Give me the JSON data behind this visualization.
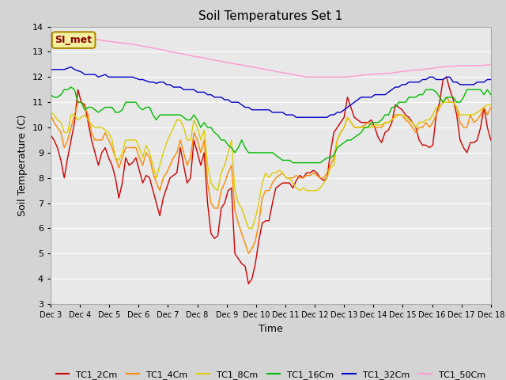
{
  "title": "Soil Temperatures Set 1",
  "xlabel": "Time",
  "ylabel": "Soil Temperature (C)",
  "ylim": [
    3.0,
    14.0
  ],
  "yticks": [
    3.0,
    4.0,
    5.0,
    6.0,
    7.0,
    8.0,
    9.0,
    10.0,
    11.0,
    12.0,
    13.0,
    14.0
  ],
  "xtick_labels": [
    "Dec 3",
    "Dec 4",
    "Dec 5",
    "Dec 6",
    "Dec 7",
    "Dec 8",
    "Dec 9",
    "Dec 10",
    "Dec 11",
    "Dec 12",
    "Dec 13",
    "Dec 14",
    "Dec 15",
    "Dec 16",
    "Dec 17",
    "Dec 18"
  ],
  "annotation_text": "SI_met",
  "annotation_bg": "#f5f0a0",
  "annotation_border": "#aa8800",
  "figure_bg": "#d4d4d4",
  "plot_bg": "#e8e8e8",
  "grid_color": "#ffffff",
  "lines": {
    "TC1_2Cm": {
      "color": "#cc0000",
      "data": [
        9.7,
        9.5,
        9.2,
        8.7,
        8.0,
        8.8,
        9.5,
        10.2,
        11.5,
        11.0,
        10.9,
        10.2,
        9.5,
        9.0,
        8.5,
        9.0,
        9.2,
        8.8,
        8.5,
        8.0,
        7.2,
        7.8,
        8.8,
        8.5,
        8.6,
        8.8,
        8.3,
        7.8,
        8.1,
        8.0,
        7.5,
        7.0,
        6.5,
        7.2,
        7.6,
        8.0,
        8.1,
        8.2,
        9.2,
        8.5,
        7.8,
        8.0,
        9.5,
        9.0,
        8.5,
        9.0,
        7.0,
        5.8,
        5.6,
        5.7,
        6.8,
        7.0,
        7.5,
        7.6,
        5.0,
        4.8,
        4.6,
        4.5,
        3.8,
        4.0,
        4.6,
        5.5,
        6.2,
        6.3,
        6.3,
        7.0,
        7.6,
        7.7,
        7.8,
        7.8,
        7.8,
        7.6,
        7.9,
        8.1,
        8.0,
        8.2,
        8.2,
        8.3,
        8.2,
        8.0,
        7.9,
        8.0,
        9.0,
        9.8,
        10.0,
        10.2,
        10.4,
        11.2,
        10.8,
        10.4,
        10.3,
        10.2,
        10.2,
        10.2,
        10.3,
        10.0,
        9.6,
        9.4,
        9.8,
        9.9,
        10.2,
        10.9,
        10.8,
        10.7,
        10.5,
        10.4,
        10.2,
        10.0,
        9.5,
        9.3,
        9.3,
        9.2,
        9.3,
        10.5,
        11.0,
        11.9,
        12.0,
        11.5,
        11.1,
        10.5,
        9.5,
        9.2,
        9.0,
        9.4,
        9.4,
        9.5,
        10.0,
        10.8,
        10.0,
        9.5
      ]
    },
    "TC1_4Cm": {
      "color": "#ff8800",
      "data": [
        10.5,
        10.2,
        10.0,
        9.8,
        9.2,
        9.5,
        10.0,
        10.5,
        11.0,
        11.0,
        10.8,
        10.5,
        9.8,
        9.5,
        9.5,
        9.5,
        9.8,
        9.5,
        9.2,
        8.8,
        8.4,
        8.8,
        9.2,
        9.2,
        9.2,
        9.2,
        8.8,
        8.5,
        9.0,
        8.8,
        8.2,
        7.8,
        7.5,
        8.0,
        8.2,
        8.5,
        8.8,
        9.0,
        9.5,
        9.0,
        8.5,
        8.8,
        9.8,
        9.5,
        9.0,
        9.5,
        7.8,
        7.0,
        6.8,
        6.8,
        7.5,
        7.8,
        8.2,
        8.5,
        6.7,
        6.2,
        5.8,
        5.4,
        5.0,
        5.2,
        5.5,
        6.2,
        7.2,
        7.5,
        7.5,
        7.8,
        8.0,
        8.1,
        8.2,
        8.0,
        8.0,
        8.0,
        8.1,
        8.0,
        8.0,
        8.1,
        8.1,
        8.2,
        8.1,
        8.0,
        8.0,
        8.2,
        8.5,
        8.8,
        9.5,
        9.8,
        10.0,
        10.4,
        10.2,
        10.0,
        10.0,
        10.0,
        10.1,
        10.2,
        10.1,
        10.0,
        10.0,
        10.0,
        10.2,
        10.2,
        10.3,
        10.5,
        10.5,
        10.5,
        10.3,
        10.2,
        10.0,
        9.8,
        10.0,
        10.0,
        10.2,
        10.0,
        10.2,
        10.5,
        10.8,
        11.0,
        11.2,
        11.0,
        11.0,
        10.8,
        10.2,
        10.0,
        10.0,
        10.5,
        10.2,
        10.3,
        10.5,
        10.8,
        10.5,
        10.8
      ]
    },
    "TC1_8Cm": {
      "color": "#ddcc00",
      "data": [
        10.6,
        10.5,
        10.3,
        10.2,
        9.8,
        9.8,
        10.5,
        10.5,
        10.3,
        10.4,
        10.5,
        10.3,
        10.1,
        10.0,
        10.0,
        10.0,
        9.9,
        9.8,
        9.5,
        8.8,
        8.7,
        9.0,
        9.5,
        9.5,
        9.5,
        9.5,
        9.2,
        8.8,
        9.3,
        9.0,
        8.5,
        8.0,
        8.5,
        9.0,
        9.4,
        9.7,
        10.0,
        10.3,
        10.3,
        10.0,
        9.5,
        9.5,
        10.3,
        10.0,
        9.5,
        9.9,
        8.5,
        7.8,
        7.6,
        7.5,
        8.2,
        8.5,
        9.0,
        9.5,
        7.5,
        7.0,
        6.8,
        6.4,
        6.0,
        6.0,
        6.4,
        7.0,
        7.8,
        8.2,
        8.0,
        8.2,
        8.2,
        8.3,
        8.2,
        8.0,
        8.0,
        7.8,
        7.6,
        7.5,
        7.6,
        7.5,
        7.5,
        7.5,
        7.5,
        7.6,
        7.8,
        8.0,
        8.4,
        8.5,
        9.5,
        9.8,
        10.0,
        10.4,
        10.2,
        10.0,
        10.0,
        10.0,
        10.0,
        10.0,
        10.0,
        10.1,
        10.1,
        10.1,
        10.2,
        10.2,
        10.3,
        10.4,
        10.5,
        10.5,
        10.4,
        10.3,
        10.2,
        10.0,
        10.2,
        10.2,
        10.3,
        10.3,
        10.5,
        10.8,
        10.8,
        11.0,
        11.0,
        11.0,
        11.0,
        10.8,
        10.5,
        10.5,
        10.5,
        10.5,
        10.5,
        10.6,
        10.7,
        10.8,
        10.9,
        10.9
      ]
    },
    "TC1_16Cm": {
      "color": "#00bb00",
      "data": [
        11.3,
        11.2,
        11.2,
        11.3,
        11.5,
        11.5,
        11.6,
        11.5,
        11.0,
        11.0,
        10.7,
        10.8,
        10.8,
        10.7,
        10.6,
        10.7,
        10.8,
        10.8,
        10.8,
        10.6,
        10.6,
        10.7,
        11.0,
        11.0,
        11.0,
        11.0,
        10.8,
        10.7,
        10.8,
        10.8,
        10.5,
        10.3,
        10.5,
        10.5,
        10.5,
        10.5,
        10.5,
        10.5,
        10.5,
        10.4,
        10.3,
        10.3,
        10.5,
        10.3,
        10.0,
        10.2,
        10.0,
        10.0,
        9.8,
        9.7,
        9.5,
        9.5,
        9.3,
        9.2,
        9.0,
        9.2,
        9.5,
        9.2,
        9.0,
        9.0,
        9.0,
        9.0,
        9.0,
        9.0,
        9.0,
        9.0,
        8.9,
        8.8,
        8.7,
        8.7,
        8.7,
        8.6,
        8.6,
        8.6,
        8.6,
        8.6,
        8.6,
        8.6,
        8.6,
        8.6,
        8.7,
        8.8,
        8.8,
        8.9,
        9.2,
        9.3,
        9.4,
        9.5,
        9.5,
        9.6,
        9.7,
        9.8,
        10.0,
        10.0,
        10.2,
        10.2,
        10.2,
        10.3,
        10.5,
        10.5,
        10.8,
        10.8,
        11.0,
        11.0,
        11.0,
        11.2,
        11.2,
        11.2,
        11.3,
        11.3,
        11.5,
        11.5,
        11.5,
        11.4,
        11.2,
        11.0,
        11.2,
        11.2,
        11.2,
        11.0,
        11.0,
        11.2,
        11.5,
        11.5,
        11.5,
        11.5,
        11.5,
        11.3,
        11.5,
        11.3
      ]
    },
    "TC1_32Cm": {
      "color": "#0000cc",
      "data": [
        12.3,
        12.3,
        12.3,
        12.3,
        12.3,
        12.35,
        12.4,
        12.3,
        12.25,
        12.2,
        12.1,
        12.1,
        12.1,
        12.1,
        12.0,
        12.05,
        12.1,
        12.0,
        12.0,
        12.0,
        12.0,
        12.0,
        12.0,
        12.0,
        12.0,
        11.95,
        11.9,
        11.9,
        11.85,
        11.8,
        11.8,
        11.75,
        11.8,
        11.8,
        11.7,
        11.7,
        11.6,
        11.6,
        11.6,
        11.5,
        11.5,
        11.5,
        11.5,
        11.4,
        11.4,
        11.4,
        11.3,
        11.3,
        11.2,
        11.2,
        11.2,
        11.1,
        11.1,
        11.0,
        11.0,
        11.0,
        10.9,
        10.8,
        10.8,
        10.7,
        10.7,
        10.7,
        10.7,
        10.7,
        10.7,
        10.6,
        10.6,
        10.6,
        10.6,
        10.5,
        10.5,
        10.5,
        10.4,
        10.4,
        10.4,
        10.4,
        10.4,
        10.4,
        10.4,
        10.4,
        10.4,
        10.4,
        10.5,
        10.5,
        10.6,
        10.6,
        10.7,
        10.8,
        10.9,
        11.0,
        11.1,
        11.2,
        11.2,
        11.2,
        11.2,
        11.3,
        11.3,
        11.3,
        11.3,
        11.4,
        11.5,
        11.6,
        11.6,
        11.7,
        11.7,
        11.8,
        11.8,
        11.8,
        11.8,
        11.9,
        11.9,
        12.0,
        12.0,
        11.9,
        11.9,
        11.9,
        12.0,
        12.0,
        11.8,
        11.8,
        11.7,
        11.7,
        11.7,
        11.7,
        11.7,
        11.8,
        11.8,
        11.8,
        11.9,
        11.9
      ]
    },
    "TC1_50Cm": {
      "color": "#ff99cc",
      "data": [
        13.72,
        13.7,
        13.68,
        13.67,
        13.65,
        13.63,
        13.6,
        13.58,
        13.57,
        13.56,
        13.55,
        13.53,
        13.52,
        13.5,
        13.48,
        13.46,
        13.43,
        13.42,
        13.4,
        13.38,
        13.37,
        13.35,
        13.33,
        13.32,
        13.3,
        13.28,
        13.25,
        13.22,
        13.2,
        13.18,
        13.15,
        13.12,
        13.1,
        13.07,
        13.03,
        13.0,
        12.98,
        12.96,
        12.93,
        12.91,
        12.88,
        12.85,
        12.82,
        12.8,
        12.78,
        12.75,
        12.72,
        12.7,
        12.67,
        12.65,
        12.62,
        12.6,
        12.57,
        12.55,
        12.52,
        12.5,
        12.48,
        12.45,
        12.43,
        12.4,
        12.38,
        12.35,
        12.32,
        12.3,
        12.28,
        12.25,
        12.22,
        12.2,
        12.18,
        12.15,
        12.13,
        12.1,
        12.08,
        12.05,
        12.03,
        12.0,
        12.0,
        12.0,
        12.0,
        12.0,
        12.0,
        12.0,
        12.0,
        12.0,
        12.0,
        12.0,
        12.0,
        12.01,
        12.02,
        12.03,
        12.05,
        12.07,
        12.08,
        12.1,
        12.1,
        12.12,
        12.12,
        12.13,
        12.15,
        12.15,
        12.15,
        12.18,
        12.2,
        12.22,
        12.23,
        12.25,
        12.27,
        12.28,
        12.28,
        12.3,
        12.32,
        12.33,
        12.35,
        12.37,
        12.38,
        12.4,
        12.42,
        12.43,
        12.43,
        12.44,
        12.45,
        12.45,
        12.45,
        12.45,
        12.45,
        12.45,
        12.46,
        12.47,
        12.48,
        12.48
      ]
    }
  },
  "legend_labels": [
    "TC1_2Cm",
    "TC1_4Cm",
    "TC1_8Cm",
    "TC1_16Cm",
    "TC1_32Cm",
    "TC1_50Cm"
  ],
  "legend_colors": [
    "#cc0000",
    "#ff8800",
    "#ddcc00",
    "#00bb00",
    "#0000cc",
    "#ff99cc"
  ]
}
